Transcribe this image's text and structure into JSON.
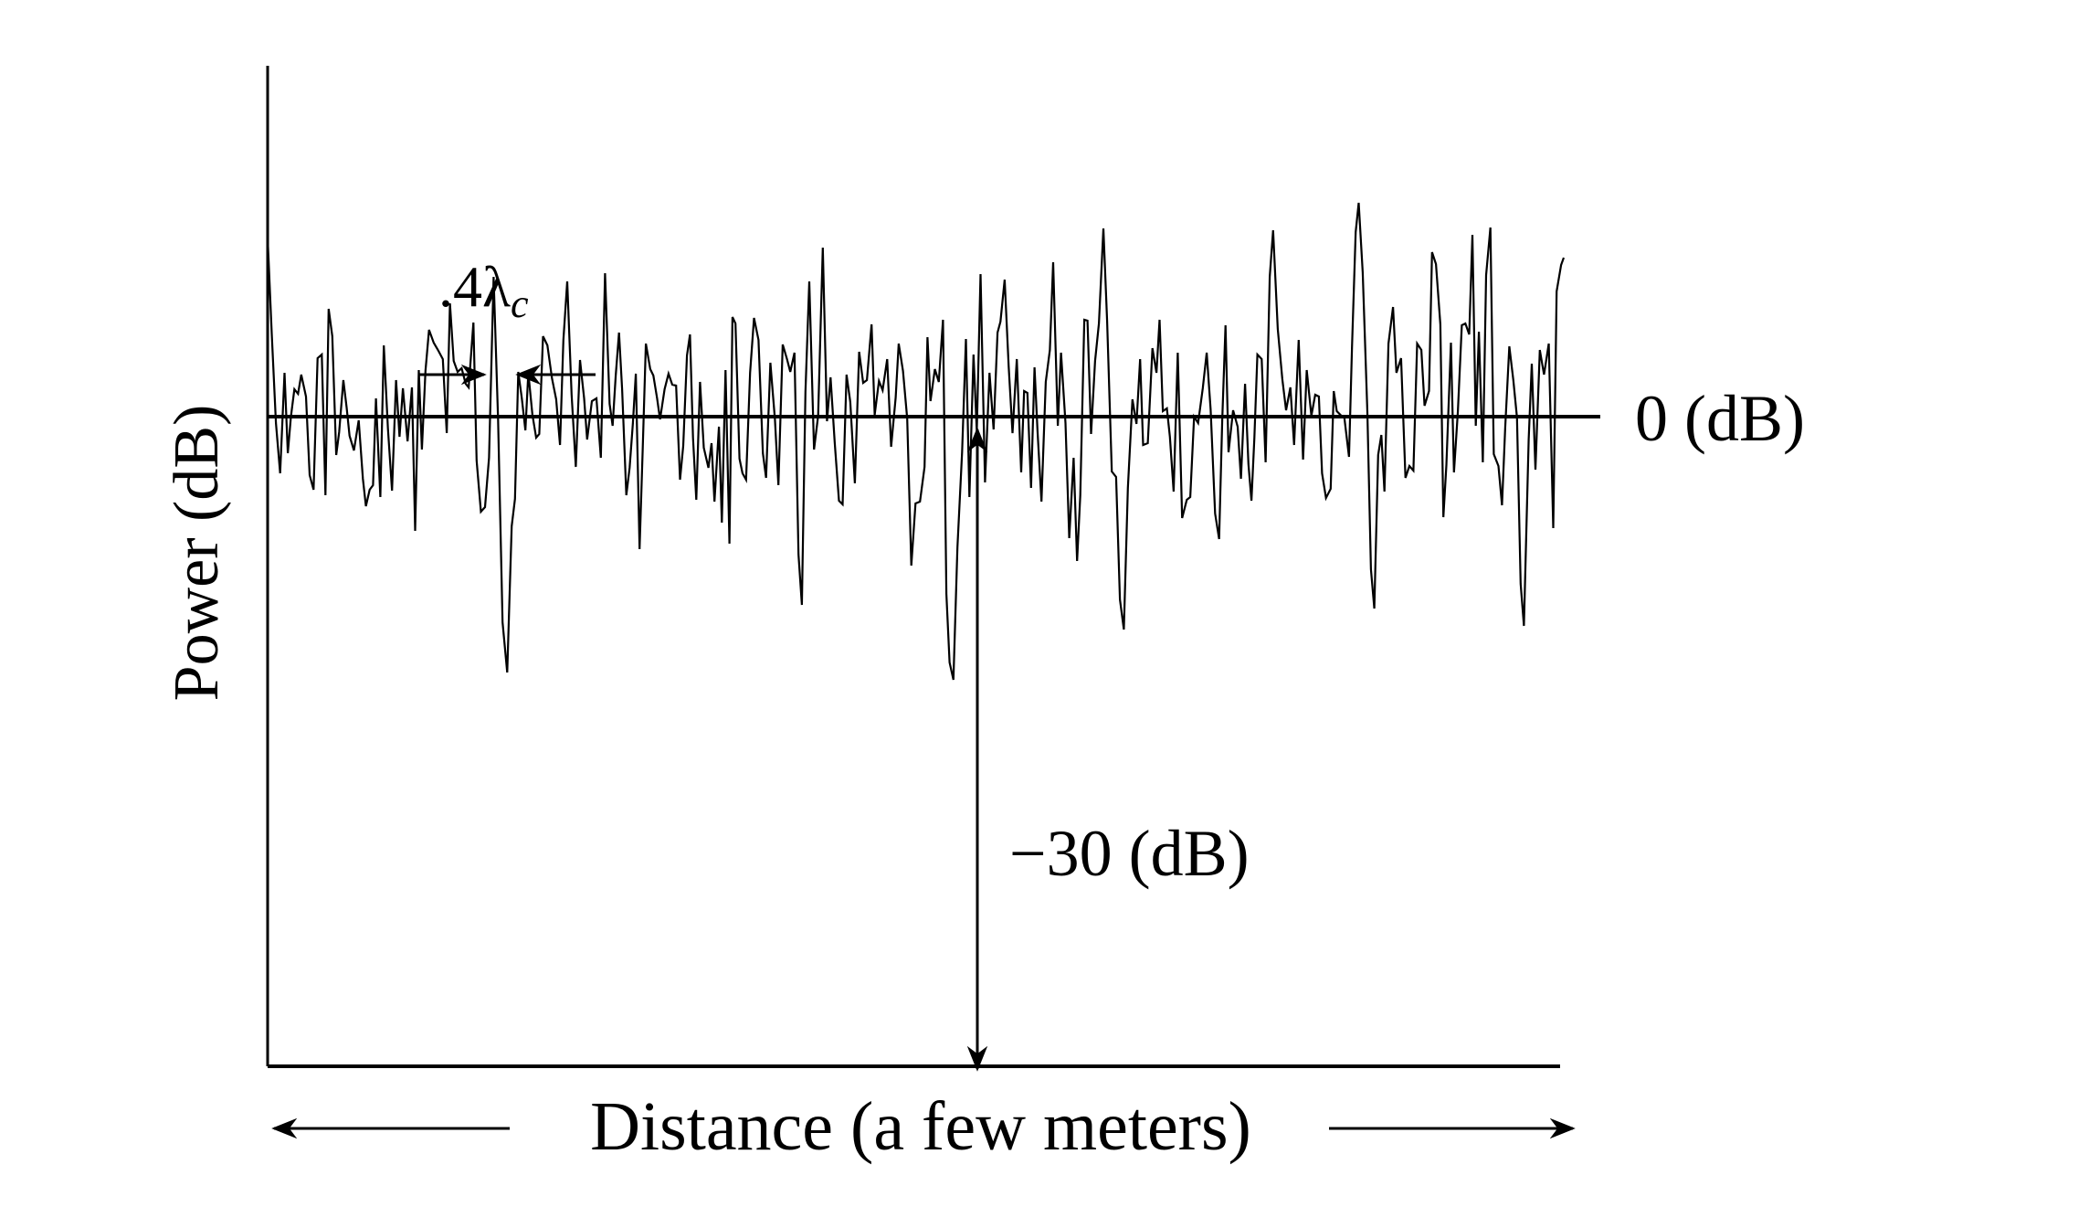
{
  "figure": {
    "y_axis_label": "Power (dB)",
    "x_axis_label": "Distance (a few meters)",
    "reference_level_label": "0 (dB)",
    "fade_depth_label": "−30 (dB)",
    "spacing_label": {
      "prefix": ".4λ",
      "subscript": "c"
    },
    "colors": {
      "ink": "#000000",
      "background": "#ffffff"
    }
  }
}
